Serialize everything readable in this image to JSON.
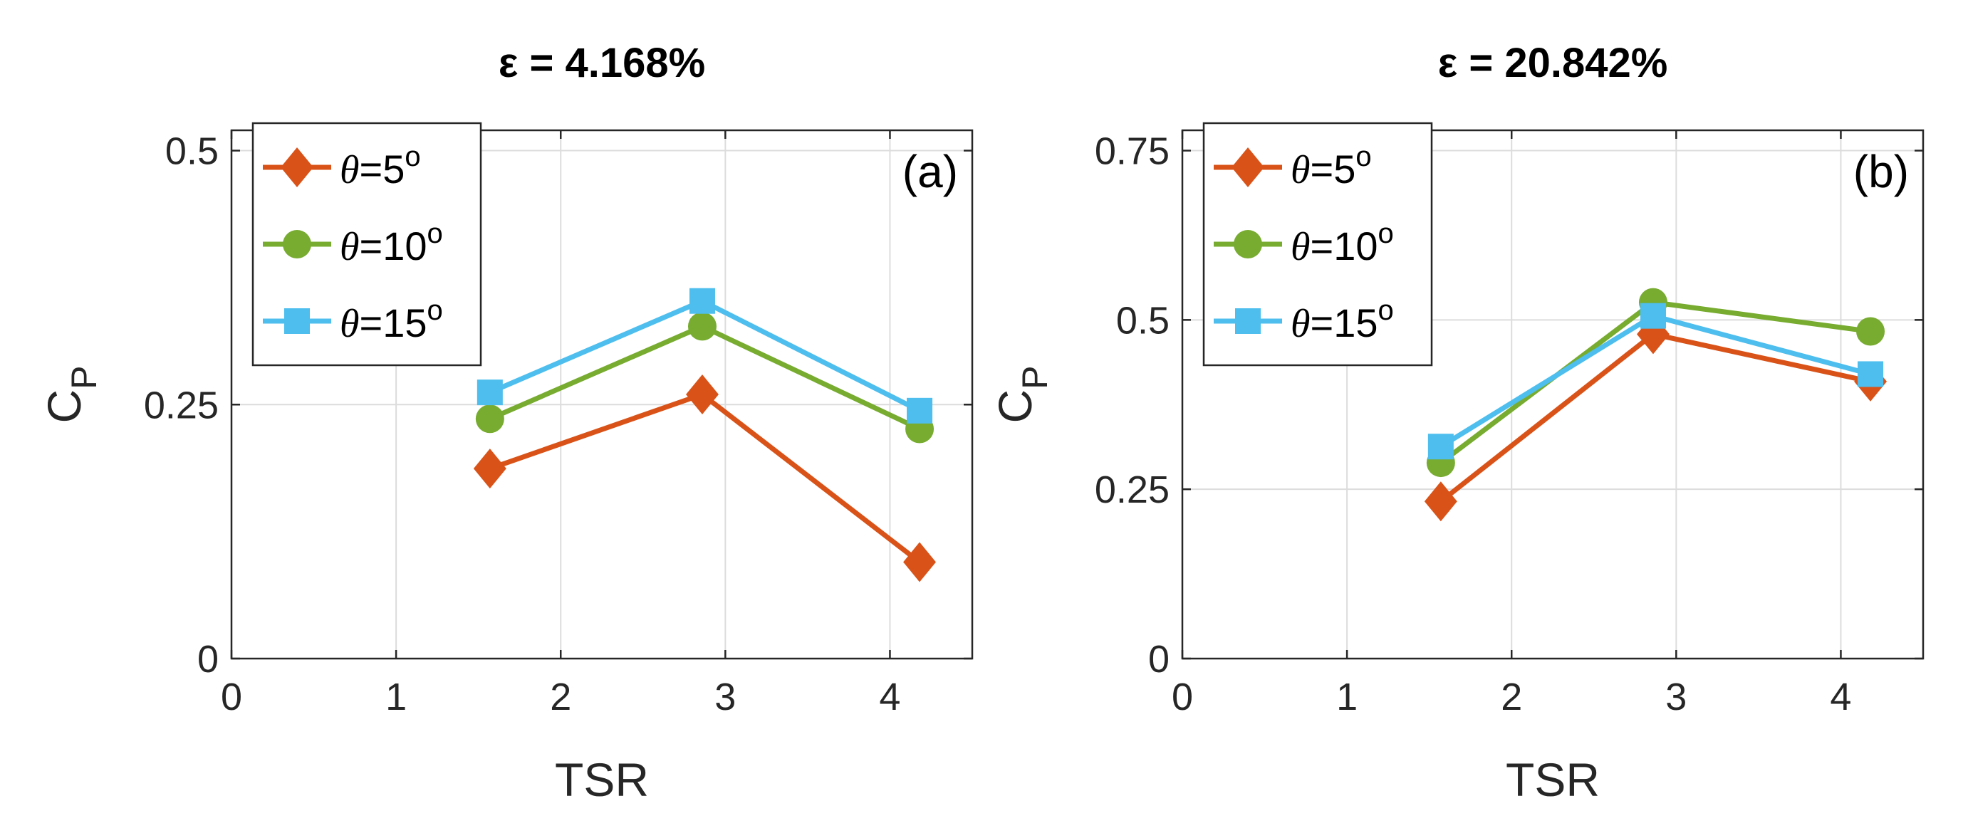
{
  "chart_data": [
    {
      "type": "line",
      "title": "ε = 4.168%",
      "panel_label": "(a)",
      "xlabel": "TSR",
      "ylabel_main": "C",
      "ylabel_sub": "P",
      "xlim": [
        0,
        4.5
      ],
      "ylim": [
        0,
        0.52
      ],
      "xticks": [
        0,
        1,
        2,
        3,
        4
      ],
      "xtick_labels": [
        "0",
        "1",
        "2",
        "3",
        "4"
      ],
      "yticks": [
        0,
        0.25,
        0.5
      ],
      "ytick_labels": [
        "0",
        "0.25",
        "0.5"
      ],
      "grid": true,
      "legend_position": "top-left",
      "x": [
        1.57,
        2.86,
        4.18
      ],
      "series": [
        {
          "name": "θ=5o",
          "legend_prefix": "θ",
          "legend_value": "=5",
          "legend_sup": "o",
          "color": "#D95319",
          "marker": "diamond",
          "values": [
            0.187,
            0.26,
            0.095
          ]
        },
        {
          "name": "θ=10o",
          "legend_prefix": "θ",
          "legend_value": "=10",
          "legend_sup": "o",
          "color": "#77AC30",
          "marker": "circle",
          "values": [
            0.236,
            0.327,
            0.226
          ]
        },
        {
          "name": "θ=15o",
          "legend_prefix": "θ",
          "legend_value": "=15",
          "legend_sup": "o",
          "color": "#4DBEEE",
          "marker": "square",
          "values": [
            0.262,
            0.352,
            0.244
          ]
        }
      ]
    },
    {
      "type": "line",
      "title": "ε = 20.842%",
      "panel_label": "(b)",
      "xlabel": "TSR",
      "ylabel_main": "C",
      "ylabel_sub": "P",
      "xlim": [
        0,
        4.5
      ],
      "ylim": [
        0,
        0.78
      ],
      "xticks": [
        0,
        1,
        2,
        3,
        4
      ],
      "xtick_labels": [
        "0",
        "1",
        "2",
        "3",
        "4"
      ],
      "yticks": [
        0,
        0.25,
        0.5,
        0.75
      ],
      "ytick_labels": [
        "0",
        "0.25",
        "0.5",
        "0.75"
      ],
      "grid": true,
      "legend_position": "top-left",
      "x": [
        1.57,
        2.86,
        4.18
      ],
      "series": [
        {
          "name": "θ=5o",
          "legend_prefix": "θ",
          "legend_value": "=5",
          "legend_sup": "o",
          "color": "#D95319",
          "marker": "diamond",
          "values": [
            0.232,
            0.479,
            0.409
          ]
        },
        {
          "name": "θ=10o",
          "legend_prefix": "θ",
          "legend_value": "=10",
          "legend_sup": "o",
          "color": "#77AC30",
          "marker": "circle",
          "values": [
            0.289,
            0.526,
            0.483
          ]
        },
        {
          "name": "θ=15o",
          "legend_prefix": "θ",
          "legend_value": "=15",
          "legend_sup": "o",
          "color": "#4DBEEE",
          "marker": "square",
          "values": [
            0.313,
            0.506,
            0.42
          ]
        }
      ]
    }
  ]
}
